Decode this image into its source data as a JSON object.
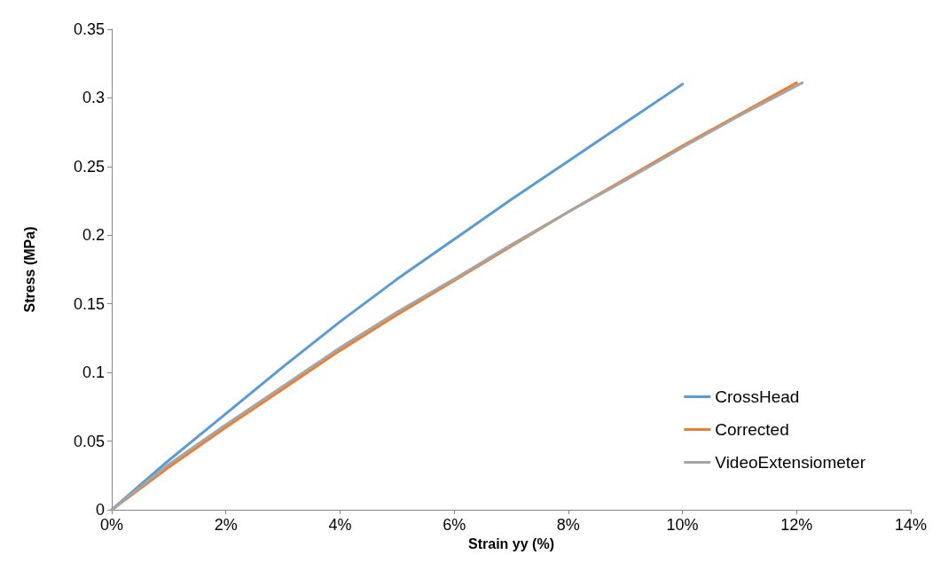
{
  "chart_data": {
    "type": "line",
    "xlabel": "Strain yy (%)",
    "ylabel": "Stress (MPa)",
    "xlim": [
      0,
      14
    ],
    "xticks": [
      {
        "value": 0,
        "label": "0%"
      },
      {
        "value": 2,
        "label": "2%"
      },
      {
        "value": 4,
        "label": "4%"
      },
      {
        "value": 6,
        "label": "6%"
      },
      {
        "value": 8,
        "label": "8%"
      },
      {
        "value": 10,
        "label": "10%"
      },
      {
        "value": 12,
        "label": "12%"
      },
      {
        "value": 14,
        "label": "14%"
      }
    ],
    "ylim": [
      0,
      0.35
    ],
    "yticks": [
      0,
      0.05,
      0.1,
      0.15,
      0.2,
      0.25,
      0.3,
      0.35
    ],
    "grid": false,
    "legend": "right",
    "marker": "none",
    "line_style": "solid",
    "series": [
      {
        "name": "CrossHead",
        "color": "#5b9bd5",
        "x": [
          0,
          1,
          2,
          3,
          4,
          5,
          6,
          7,
          8,
          9,
          10
        ],
        "values": [
          0,
          0.036,
          0.07,
          0.104,
          0.137,
          0.168,
          0.197,
          0.226,
          0.254,
          0.282,
          0.31
        ]
      },
      {
        "name": "Corrected",
        "color": "#ed7d31",
        "x": [
          0,
          1,
          2,
          3,
          4,
          5,
          6,
          7,
          8,
          9,
          10,
          11,
          12
        ],
        "values": [
          0,
          0.031,
          0.06,
          0.088,
          0.116,
          0.142,
          0.167,
          0.192,
          0.217,
          0.241,
          0.265,
          0.288,
          0.311
        ]
      },
      {
        "name": "VideoExtensiometer",
        "color": "#a5a5a5",
        "x": [
          0,
          1,
          2,
          3,
          4,
          5,
          6,
          7,
          8,
          9,
          10,
          11,
          12.1
        ],
        "values": [
          0,
          0.033,
          0.062,
          0.09,
          0.118,
          0.144,
          0.168,
          0.193,
          0.217,
          0.24,
          0.264,
          0.287,
          0.311
        ]
      }
    ]
  }
}
